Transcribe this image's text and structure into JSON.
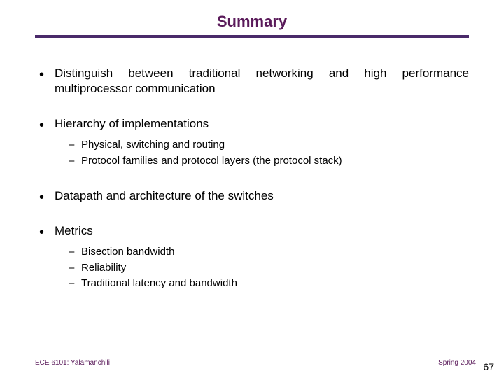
{
  "title": {
    "text": "Summary",
    "color": "#5a1a5a",
    "fontsize": 22
  },
  "rule_color": "#4a2a6a",
  "bullets": [
    {
      "text": "Distinguish between traditional networking and high performance multiprocessor communication",
      "justify": true
    },
    {
      "text": "Hierarchy of implementations",
      "sub": [
        "Physical, switching and routing",
        "Protocol families and protocol layers (the protocol stack)"
      ]
    },
    {
      "text": "Datapath and architecture of the switches"
    },
    {
      "text": "Metrics",
      "sub": [
        "Bisection bandwidth",
        "Reliability",
        "Traditional latency and bandwidth"
      ]
    }
  ],
  "footer": {
    "left": "ECE 6101: Yalamanchili",
    "right": "Spring 2004",
    "color": "#5a1a5a",
    "page": "67"
  }
}
